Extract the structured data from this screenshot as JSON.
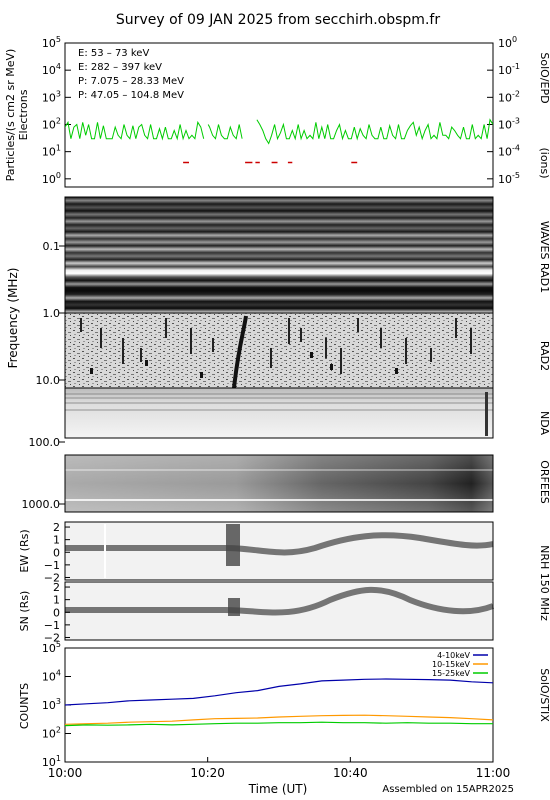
{
  "title": "Survey of 09 JAN 2025 from secchirh.obspm.fr",
  "footer": "Assembled on 15APR2025",
  "time_axis": {
    "label": "Time (UT)",
    "ticks": [
      "10:00",
      "10:20",
      "10:40",
      "11:00"
    ],
    "range": [
      "10:00",
      "11:00"
    ]
  },
  "chart_data": [
    {
      "type": "line",
      "instrument": "SolO/EPD",
      "ylabel": "Particles/(s cm2 sr MeV)",
      "ylabel2": "Electrons",
      "ylabel_right": "(ions)",
      "scale": "log",
      "ylim": [
        0.5,
        100000
      ],
      "yticks_left": [
        "10^0",
        "10^1",
        "10^2",
        "10^3",
        "10^4",
        "10^5"
      ],
      "yticks_right": [
        "10^-5",
        "10^-4",
        "10^-3",
        "10^-2",
        "10^-1",
        "10^0"
      ],
      "legend": [
        {
          "label": "E: 53 – 73 keV",
          "color": "#00cc00"
        },
        {
          "label": "E: 282 – 397 keV",
          "color": "#cc0000"
        },
        {
          "label": "P: 7.075 – 28.33 MeV",
          "color": "#000000"
        },
        {
          "label": "P: 47.05 – 104.8 MeV",
          "color": "#0000aa"
        }
      ],
      "series": [
        {
          "name": "E: 53 – 73 keV",
          "color": "#00cc00",
          "segments": [
            [
              [
                0,
                80
              ],
              [
                1,
                120
              ],
              [
                1.5,
                60
              ],
              [
                2,
                30
              ],
              [
                3,
                80
              ],
              [
                4,
                100
              ],
              [
                5,
                30
              ],
              [
                6,
                120
              ],
              [
                7,
                40
              ],
              [
                8,
                100
              ],
              [
                9,
                30
              ],
              [
                10,
                30
              ],
              [
                11,
                120
              ],
              [
                12,
                30
              ],
              [
                13,
                90
              ],
              [
                14,
                30
              ],
              [
                15,
                30
              ],
              [
                16,
                30
              ],
              [
                17,
                80
              ],
              [
                18,
                40
              ],
              [
                19,
                30
              ],
              [
                20,
                100
              ],
              [
                21,
                40
              ],
              [
                22,
                30
              ],
              [
                23,
                90
              ],
              [
                24,
                30
              ],
              [
                25,
                80
              ],
              [
                26,
                100
              ],
              [
                27,
                40
              ],
              [
                28,
                30
              ],
              [
                29,
                100
              ],
              [
                30,
                30
              ],
              [
                31,
                30
              ],
              [
                32,
                70
              ],
              [
                33,
                30
              ],
              [
                34,
                80
              ],
              [
                35,
                30
              ],
              [
                36,
                30
              ],
              [
                37,
                60
              ],
              [
                38,
                30
              ],
              [
                39,
                100
              ],
              [
                40,
                30
              ],
              [
                41,
                60
              ],
              [
                42,
                30
              ],
              [
                43,
                40
              ],
              [
                44,
                30
              ],
              [
                45,
                120
              ],
              [
                46,
                80
              ],
              [
                47,
                30
              ]
            ],
            [
              [
                48.5,
                100
              ],
              [
                49,
                80
              ],
              [
                50,
                40
              ],
              [
                51,
                30
              ],
              [
                52,
                100
              ],
              [
                53,
                40
              ],
              [
                54,
                30
              ],
              [
                55,
                30
              ],
              [
                56,
                80
              ],
              [
                57,
                40
              ],
              [
                58,
                30
              ],
              [
                59,
                100
              ],
              [
                60,
                30
              ]
            ],
            [
              [
                65,
                150
              ],
              [
                66,
                100
              ],
              [
                67,
                60
              ],
              [
                68,
                30
              ],
              [
                69,
                20
              ],
              [
                70,
                40
              ],
              [
                71,
                100
              ],
              [
                72,
                30
              ],
              [
                73,
                50
              ],
              [
                74,
                100
              ],
              [
                75,
                30
              ],
              [
                76,
                30
              ],
              [
                77,
                60
              ],
              [
                78,
                30
              ],
              [
                79,
                100
              ],
              [
                80,
                30
              ],
              [
                81,
                60
              ],
              [
                82,
                30
              ],
              [
                83,
                40
              ],
              [
                84,
                30
              ],
              [
                85,
                120
              ],
              [
                86,
                30
              ],
              [
                87,
                80
              ],
              [
                88,
                30
              ],
              [
                89,
                100
              ],
              [
                90,
                30
              ],
              [
                91,
                30
              ],
              [
                92,
                60
              ],
              [
                93,
                100
              ],
              [
                94,
                30
              ],
              [
                95,
                60
              ],
              [
                96,
                30
              ],
              [
                97,
                30
              ],
              [
                98,
                80
              ],
              [
                99,
                30
              ],
              [
                100,
                70
              ],
              [
                101,
                40
              ],
              [
                102,
                30
              ],
              [
                103,
                100
              ],
              [
                104,
                40
              ],
              [
                105,
                30
              ],
              [
                106,
                30
              ],
              [
                107,
                80
              ],
              [
                108,
                30
              ],
              [
                109,
                30
              ],
              [
                110,
                90
              ],
              [
                111,
                40
              ],
              [
                112,
                30
              ],
              [
                113,
                100
              ],
              [
                114,
                30
              ],
              [
                115,
                30
              ],
              [
                116,
                60
              ],
              [
                117,
                90
              ],
              [
                118,
                120
              ],
              [
                119,
                40
              ],
              [
                120,
                80
              ],
              [
                121,
                30
              ],
              [
                122,
                60
              ],
              [
                123,
                100
              ],
              [
                124,
                30
              ],
              [
                125,
                40
              ],
              [
                126,
                30
              ],
              [
                127,
                120
              ],
              [
                128,
                40
              ],
              [
                129,
                40
              ],
              [
                130,
                30
              ],
              [
                131,
                80
              ],
              [
                132,
                60
              ],
              [
                133,
                40
              ],
              [
                134,
                30
              ],
              [
                135,
                80
              ],
              [
                136,
                30
              ],
              [
                137,
                30
              ],
              [
                138,
                100
              ],
              [
                139,
                30
              ],
              [
                140,
                40
              ],
              [
                141,
                30
              ],
              [
                142,
                100
              ],
              [
                143,
                30
              ],
              [
                144,
                150
              ],
              [
                145,
                100
              ]
            ]
          ]
        },
        {
          "name": "E: 282 – 397 keV",
          "color": "#cc0000",
          "segments": [
            [
              [
                40,
                4
              ],
              [
                42,
                4
              ]
            ],
            [
              [
                61,
                4
              ],
              [
                63.5,
                4
              ]
            ],
            [
              [
                64.5,
                4
              ],
              [
                66,
                4
              ]
            ],
            [
              [
                70,
                4
              ],
              [
                72,
                4
              ]
            ],
            [
              [
                75.5,
                4
              ],
              [
                77,
                4
              ]
            ],
            [
              [
                97,
                4
              ],
              [
                99,
                4
              ]
            ]
          ]
        }
      ]
    },
    {
      "type": "heatmap",
      "instrument": "WAVES RAD1",
      "ylabel": "Frequency (MHz)",
      "yticks": [
        "0.1",
        "1.0"
      ]
    },
    {
      "type": "heatmap",
      "instrument": "RAD2",
      "yticks": [
        "10.0"
      ]
    },
    {
      "type": "heatmap",
      "instrument": "NDA",
      "yticks": [
        "100.0"
      ]
    },
    {
      "type": "heatmap",
      "instrument": "ORFEES",
      "yticks": [
        "1000.0"
      ]
    },
    {
      "type": "heatmap",
      "instrument": "NRH 150 MHz",
      "panel": "EW",
      "ylabel": "EW (Rs)",
      "yticks": [
        "-2",
        "-1",
        "0",
        "1",
        "2"
      ],
      "ylim": [
        -2.2,
        2.4
      ]
    },
    {
      "type": "heatmap",
      "instrument": "NRH 150 MHz",
      "panel": "SN",
      "ylabel": "SN (Rs)",
      "yticks": [
        "-2",
        "-1",
        "0",
        "1",
        "2"
      ],
      "ylim": [
        -2.2,
        2.4
      ]
    },
    {
      "type": "line",
      "instrument": "SolO/STIX",
      "ylabel": "COUNTS",
      "scale": "log",
      "ylim": [
        10,
        100000
      ],
      "yticks": [
        "10^1",
        "10^2",
        "10^3",
        "10^4",
        "10^5"
      ],
      "legend_position": "top-right",
      "legend": [
        {
          "label": "4-10keV",
          "color": "#0000aa"
        },
        {
          "label": "10-15keV",
          "color": "#ff9900"
        },
        {
          "label": "15-25keV",
          "color": "#00cc00"
        }
      ],
      "series": [
        {
          "name": "4-10keV",
          "color": "#0000aa",
          "x_minutes": [
            0,
            3,
            6,
            9,
            12,
            15,
            18,
            21,
            24,
            27,
            30,
            33,
            36,
            39,
            42,
            45,
            48,
            51,
            54,
            57,
            60
          ],
          "values": [
            1000,
            1100,
            1200,
            1400,
            1500,
            1600,
            1700,
            2100,
            2700,
            3200,
            4500,
            5500,
            7000,
            7500,
            8000,
            8200,
            8000,
            7800,
            7500,
            6500,
            6000
          ]
        },
        {
          "name": "10-15keV",
          "color": "#ff9900",
          "x_minutes": [
            0,
            3,
            6,
            9,
            12,
            15,
            18,
            21,
            24,
            27,
            30,
            33,
            36,
            39,
            42,
            45,
            48,
            51,
            54,
            57,
            60
          ],
          "values": [
            210,
            220,
            230,
            250,
            260,
            270,
            300,
            330,
            340,
            350,
            380,
            400,
            420,
            430,
            440,
            420,
            400,
            380,
            360,
            330,
            300
          ]
        },
        {
          "name": "15-25keV",
          "color": "#00cc00",
          "x_minutes": [
            0,
            3,
            6,
            9,
            12,
            15,
            18,
            21,
            24,
            27,
            30,
            33,
            36,
            39,
            42,
            45,
            48,
            51,
            54,
            57,
            60
          ],
          "values": [
            190,
            200,
            195,
            200,
            210,
            200,
            210,
            220,
            230,
            230,
            240,
            240,
            250,
            240,
            240,
            230,
            240,
            230,
            230,
            220,
            220
          ]
        }
      ]
    }
  ]
}
